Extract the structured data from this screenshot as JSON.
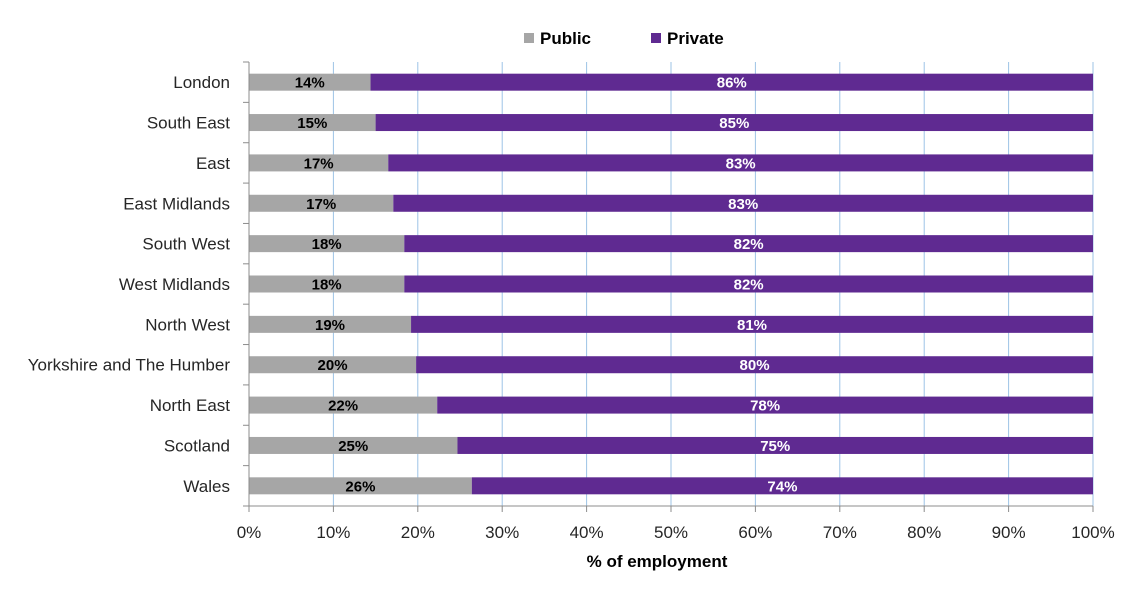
{
  "chart_data": {
    "type": "bar",
    "orientation": "horizontal",
    "stacked": "100%",
    "categories": [
      "London",
      "South East",
      "East",
      "East Midlands",
      "South West",
      "West Midlands",
      "North West",
      "Yorkshire and The Humber",
      "North East",
      "Scotland",
      "Wales"
    ],
    "series": [
      {
        "name": "Public",
        "color": "#a6a6a6",
        "label_color": "#000000",
        "values": [
          14.4,
          15.0,
          16.5,
          17.1,
          18.4,
          18.4,
          19.2,
          19.8,
          22.3,
          24.7,
          26.4
        ],
        "labels": [
          "14%",
          "15%",
          "17%",
          "17%",
          "18%",
          "18%",
          "19%",
          "20%",
          "22%",
          "25%",
          "26%"
        ]
      },
      {
        "name": "Private",
        "color": "#5f2a91",
        "label_color": "#ffffff",
        "values": [
          85.6,
          85.0,
          83.5,
          82.9,
          81.6,
          81.6,
          80.8,
          80.2,
          77.7,
          75.3,
          73.6
        ],
        "labels": [
          "86%",
          "85%",
          "83%",
          "83%",
          "82%",
          "82%",
          "81%",
          "80%",
          "78%",
          "75%",
          "74%"
        ]
      }
    ],
    "xlabel": "% of employment",
    "ylabel": "",
    "xlim": [
      0,
      100
    ],
    "x_ticks": [
      "0%",
      "10%",
      "20%",
      "30%",
      "40%",
      "50%",
      "60%",
      "70%",
      "80%",
      "90%",
      "100%"
    ],
    "grid": true,
    "grid_color": "#9dc3e6",
    "legend_position": "top"
  }
}
